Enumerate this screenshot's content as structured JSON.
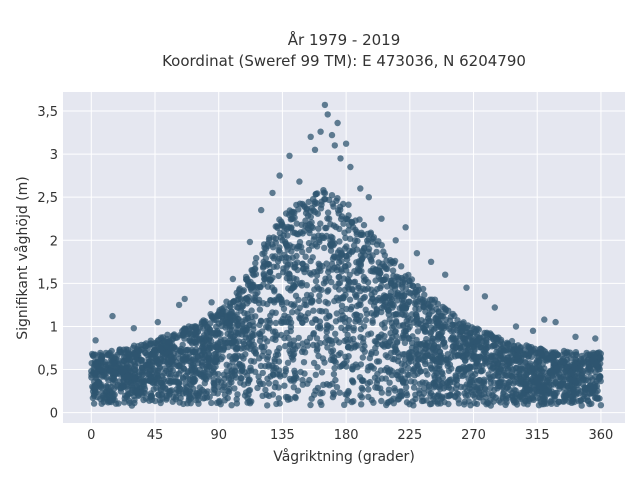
{
  "chart_data": {
    "type": "scatter",
    "title": "År 1979 - 2019",
    "subtitle": "Koordinat (Sweref 99 TM): E 473036, N 6204790",
    "xlabel": "Vågriktning (grader)",
    "ylabel": "Signifikant våghöjd (m)",
    "xlim": [
      -20,
      377
    ],
    "ylim": [
      -0.12,
      3.72
    ],
    "xticks": [
      0,
      45,
      90,
      135,
      180,
      225,
      270,
      315,
      360
    ],
    "xtick_labels": [
      "0",
      "45",
      "90",
      "135",
      "180",
      "225",
      "270",
      "315",
      "360"
    ],
    "yticks": [
      0,
      0.5,
      1,
      1.5,
      2,
      2.5,
      3,
      3.5
    ],
    "ytick_labels": [
      "0",
      "0,5",
      "1",
      "1,5",
      "2",
      "2,5",
      "3",
      "3,5"
    ],
    "grid": true,
    "marker_color": "#2f5670",
    "plot_background": "#e5e7f0",
    "density_envelope": {
      "x": [
        0,
        15,
        30,
        45,
        60,
        75,
        90,
        105,
        120,
        135,
        150,
        165,
        180,
        195,
        210,
        225,
        240,
        255,
        270,
        285,
        300,
        315,
        330,
        345,
        360
      ],
      "y_max": [
        0.7,
        0.72,
        0.78,
        0.85,
        0.95,
        1.05,
        1.2,
        1.45,
        1.9,
        2.3,
        2.5,
        2.6,
        2.45,
        2.15,
        1.85,
        1.6,
        1.35,
        1.15,
        1.0,
        0.9,
        0.82,
        0.75,
        0.72,
        0.7,
        0.7
      ],
      "y_min": 0.08
    },
    "outlier_points": [
      {
        "x": 3,
        "y": 0.84
      },
      {
        "x": 15,
        "y": 1.12
      },
      {
        "x": 30,
        "y": 0.98
      },
      {
        "x": 47,
        "y": 1.05
      },
      {
        "x": 62,
        "y": 1.25
      },
      {
        "x": 66,
        "y": 1.32
      },
      {
        "x": 85,
        "y": 1.28
      },
      {
        "x": 100,
        "y": 1.55
      },
      {
        "x": 112,
        "y": 1.98
      },
      {
        "x": 120,
        "y": 2.35
      },
      {
        "x": 128,
        "y": 2.55
      },
      {
        "x": 133,
        "y": 2.75
      },
      {
        "x": 140,
        "y": 2.98
      },
      {
        "x": 147,
        "y": 2.68
      },
      {
        "x": 155,
        "y": 3.2
      },
      {
        "x": 158,
        "y": 3.05
      },
      {
        "x": 162,
        "y": 3.26
      },
      {
        "x": 165,
        "y": 3.57
      },
      {
        "x": 167,
        "y": 3.46
      },
      {
        "x": 170,
        "y": 3.22
      },
      {
        "x": 172,
        "y": 3.1
      },
      {
        "x": 174,
        "y": 3.36
      },
      {
        "x": 176,
        "y": 2.95
      },
      {
        "x": 180,
        "y": 3.12
      },
      {
        "x": 183,
        "y": 2.85
      },
      {
        "x": 190,
        "y": 2.6
      },
      {
        "x": 196,
        "y": 2.5
      },
      {
        "x": 205,
        "y": 2.25
      },
      {
        "x": 215,
        "y": 2.0
      },
      {
        "x": 222,
        "y": 2.15
      },
      {
        "x": 230,
        "y": 1.85
      },
      {
        "x": 240,
        "y": 1.75
      },
      {
        "x": 250,
        "y": 1.6
      },
      {
        "x": 265,
        "y": 1.45
      },
      {
        "x": 278,
        "y": 1.35
      },
      {
        "x": 285,
        "y": 1.22
      },
      {
        "x": 300,
        "y": 1.0
      },
      {
        "x": 312,
        "y": 0.95
      },
      {
        "x": 320,
        "y": 1.08
      },
      {
        "x": 328,
        "y": 1.05
      },
      {
        "x": 342,
        "y": 0.88
      },
      {
        "x": 356,
        "y": 0.86
      }
    ]
  }
}
